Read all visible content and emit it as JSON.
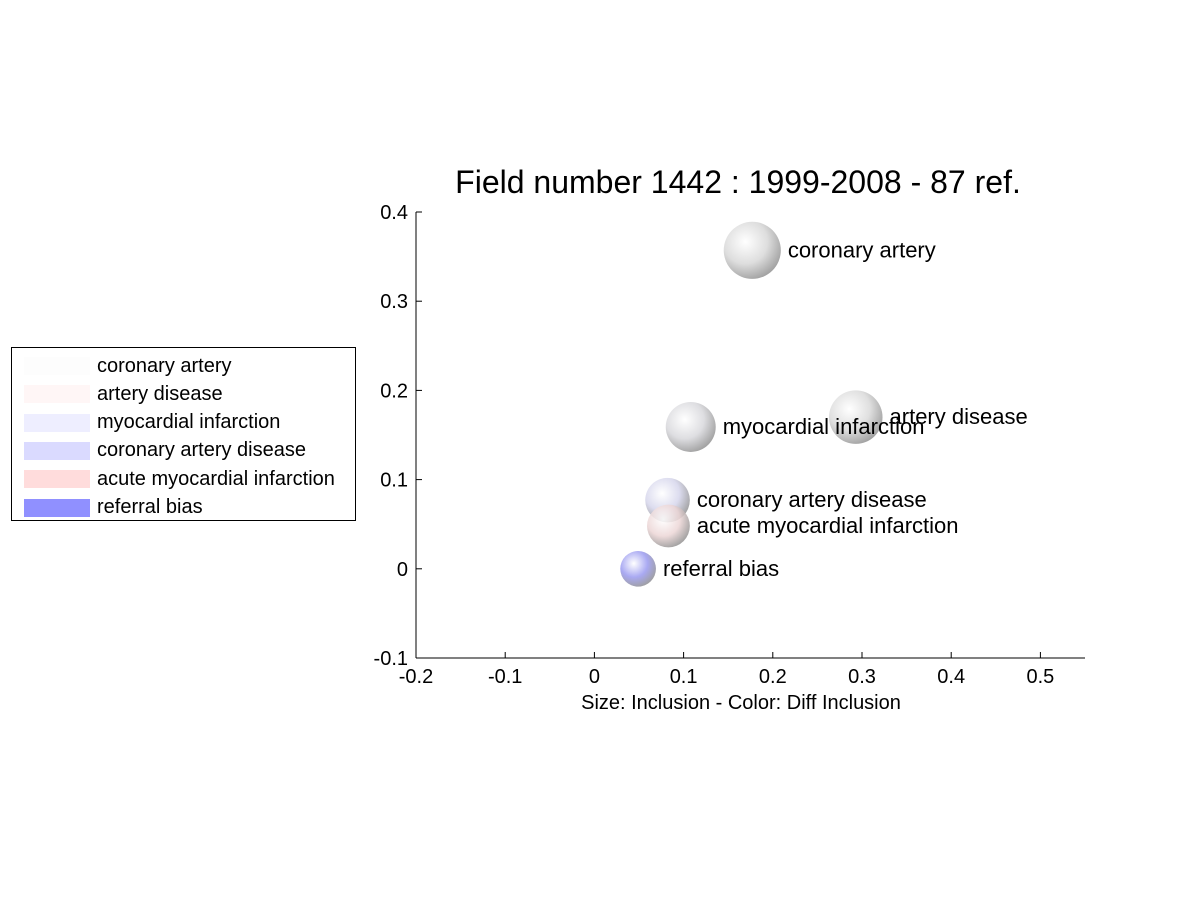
{
  "chart_data": {
    "type": "scatter",
    "title": "Field number 1442 : 1999-2008  - 87 ref.",
    "xlabel": "Size: Inclusion - Color: Diff Inclusion",
    "ylabel": "",
    "xlim": [
      -0.2,
      0.55
    ],
    "ylim": [
      -0.1,
      0.4
    ],
    "xticks": [
      -0.2,
      -0.1,
      0,
      0.1,
      0.2,
      0.3,
      0.4,
      0.5
    ],
    "yticks": [
      -0.1,
      0,
      0.1,
      0.2,
      0.3,
      0.4
    ],
    "xtick_labels": [
      "-0.2",
      "-0.1",
      "0",
      "0.1",
      "0.2",
      "0.3",
      "0.4",
      "0.5"
    ],
    "ytick_labels": [
      "-0.1",
      "0",
      "0.1",
      "0.2",
      "0.3",
      "0.4"
    ],
    "grid": false,
    "legend_placement": "left",
    "points": [
      {
        "label": "coronary artery",
        "x": 0.177,
        "y": 0.357,
        "size": 0.032,
        "color": "#d8d8d8",
        "swatch": "#fdfdfd"
      },
      {
        "label": "artery disease",
        "x": 0.293,
        "y": 0.17,
        "size": 0.03,
        "color": "#dadada",
        "swatch": "#fff6f6"
      },
      {
        "label": "myocardial infarction",
        "x": 0.108,
        "y": 0.159,
        "size": 0.028,
        "color": "#d8d8dc",
        "swatch": "#eeeeff"
      },
      {
        "label": "coronary artery disease",
        "x": 0.082,
        "y": 0.077,
        "size": 0.025,
        "color": "#d6d6ec",
        "swatch": "#dadaff"
      },
      {
        "label": "acute myocardial infarction",
        "x": 0.083,
        "y": 0.048,
        "size": 0.024,
        "color": "#ecd6d6",
        "swatch": "#ffdcdc"
      },
      {
        "label": "referral bias",
        "x": 0.049,
        "y": 0.0,
        "size": 0.02,
        "color": "#9a9af0",
        "swatch": "#9090ff"
      }
    ]
  }
}
